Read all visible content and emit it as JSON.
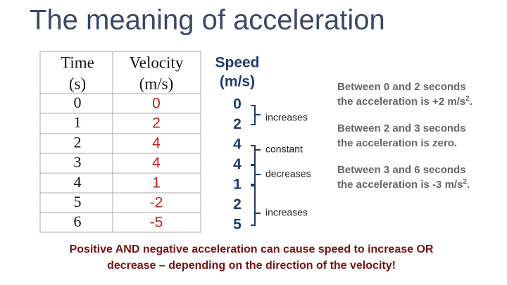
{
  "title": "The meaning of acceleration",
  "table": {
    "headers": [
      [
        "Time",
        "(s)"
      ],
      [
        "Velocity",
        "(m/s)"
      ]
    ],
    "rows": [
      [
        "0",
        "0"
      ],
      [
        "1",
        "2"
      ],
      [
        "2",
        "4"
      ],
      [
        "3",
        "4"
      ],
      [
        "4",
        "1"
      ],
      [
        "5",
        "-2"
      ],
      [
        "6",
        "-5"
      ]
    ]
  },
  "speed": {
    "header": [
      "Speed",
      "(m/s)"
    ],
    "values": [
      "0",
      "2",
      "4",
      "4",
      "1",
      "2",
      "5"
    ]
  },
  "changes": [
    "increases",
    "constant",
    "decreases",
    "increases"
  ],
  "notes": [
    {
      "line1": "Between 0 and 2 seconds",
      "line2": "the acceleration is +2 m/s",
      "sup": "2",
      "end": "."
    },
    {
      "line1": "Between 2 and 3 seconds",
      "line2": "the acceleration is zero."
    },
    {
      "line1": "Between 3 and 6 seconds",
      "line2": "the acceleration is -3 m/s",
      "sup": "2",
      "end": "."
    }
  ],
  "footer": [
    "Positive AND negative acceleration can cause speed to increase OR",
    "decrease – depending on the direction of the velocity!"
  ]
}
